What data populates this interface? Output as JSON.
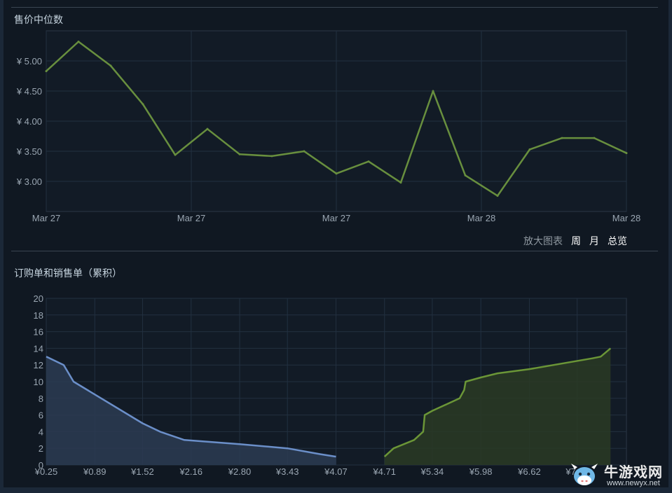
{
  "median_chart": {
    "title": "售价中位数",
    "zoom_label": "放大图表",
    "zoom_options": [
      "周",
      "月",
      "总览"
    ]
  },
  "orders_chart": {
    "title": "订购单和销售单（累积）"
  },
  "watermark": {
    "name": "牛游戏网",
    "url": "www.newyx.net"
  },
  "chart_data": [
    {
      "type": "line",
      "title": "售价中位数",
      "x_tick_labels": [
        "Mar 27",
        "Mar 27",
        "Mar 27",
        "Mar 28",
        "Mar 28"
      ],
      "x": [
        0,
        1,
        2,
        3,
        4,
        5,
        6,
        7,
        8,
        9,
        10,
        11,
        12,
        13,
        14,
        15,
        16,
        17,
        18
      ],
      "y_tick_labels": [
        "¥ 5.00",
        "¥ 4.50",
        "¥ 4.00",
        "¥ 3.50",
        "¥ 3.00"
      ],
      "y_ticks": [
        5.0,
        4.5,
        4.0,
        3.5,
        3.0
      ],
      "ylim": [
        2.5,
        5.5
      ],
      "grid": true,
      "series": [
        {
          "color": "#688f3e",
          "values": [
            4.83,
            5.32,
            4.92,
            4.28,
            3.44,
            3.87,
            3.45,
            3.42,
            3.5,
            3.13,
            3.33,
            2.98,
            4.5,
            3.1,
            2.76,
            3.53,
            3.72,
            3.72,
            3.47
          ]
        }
      ]
    },
    {
      "type": "area",
      "title": "订购单和销售单（累积）",
      "x_tick_labels": [
        "¥0.25",
        "¥0.89",
        "¥1.52",
        "¥2.16",
        "¥2.80",
        "¥3.43",
        "¥4.07",
        "¥4.71",
        "¥5.34",
        "¥5.98",
        "¥6.62",
        "¥7.25"
      ],
      "x_ticks": [
        0.25,
        0.89,
        1.52,
        2.16,
        2.8,
        3.43,
        4.07,
        4.71,
        5.34,
        5.98,
        6.62,
        7.25
      ],
      "xlim": [
        0.25,
        7.9
      ],
      "y_ticks": [
        0,
        2,
        4,
        6,
        8,
        10,
        12,
        14,
        16,
        18,
        20
      ],
      "ylim": [
        0,
        20
      ],
      "grid": true,
      "series": [
        {
          "color": "#6b8fc9",
          "fill": "#2c3b52",
          "x": [
            0.25,
            0.48,
            0.61,
            1.52,
            1.75,
            2.07,
            2.8,
            3.43,
            3.86,
            4.07
          ],
          "y": [
            13,
            12,
            10,
            5,
            4,
            3,
            2.5,
            2,
            1.3,
            1
          ]
        },
        {
          "color": "#6b9637",
          "fill": "#2a3a25",
          "x": [
            4.71,
            4.83,
            5.1,
            5.22,
            5.24,
            5.34,
            5.7,
            5.76,
            5.78,
            5.98,
            6.2,
            6.62,
            7.45,
            7.56,
            7.69
          ],
          "y": [
            1,
            2,
            3,
            4,
            6,
            6.5,
            8,
            9,
            10,
            10.5,
            11,
            11.5,
            12.8,
            13,
            14
          ]
        }
      ]
    }
  ]
}
